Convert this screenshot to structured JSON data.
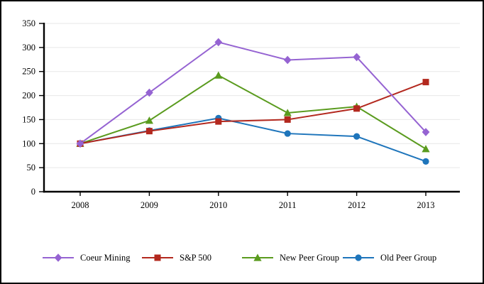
{
  "chart_data": {
    "type": "line",
    "title": "",
    "xlabel": "",
    "ylabel": "",
    "categories": [
      "2008",
      "2009",
      "2010",
      "2011",
      "2012",
      "2013"
    ],
    "series": [
      {
        "name": "Coeur Mining",
        "color": "#9563D2",
        "marker": "diamond",
        "values": [
          100,
          206,
          311,
          274,
          280,
          124
        ]
      },
      {
        "name": "S&P 500",
        "color": "#B3281E",
        "marker": "square",
        "values": [
          100,
          126,
          146,
          150,
          173,
          228
        ]
      },
      {
        "name": "New Peer Group",
        "color": "#5A9B1E",
        "marker": "triangle",
        "values": [
          100,
          148,
          242,
          164,
          177,
          89
        ]
      },
      {
        "name": "Old Peer Group",
        "color": "#1E75BB",
        "marker": "circle",
        "values": [
          100,
          127,
          153,
          121,
          115,
          63
        ]
      }
    ],
    "y_axis": {
      "min": 0,
      "max": 350,
      "step": 50,
      "tick_labels": [
        "0",
        "50",
        "100",
        "150",
        "200",
        "250",
        "300",
        "350"
      ]
    },
    "grid": true,
    "grid_color": "#E7E7E7",
    "axis_color": "#000000",
    "text_color": "#000000",
    "legend_position": "bottom"
  }
}
